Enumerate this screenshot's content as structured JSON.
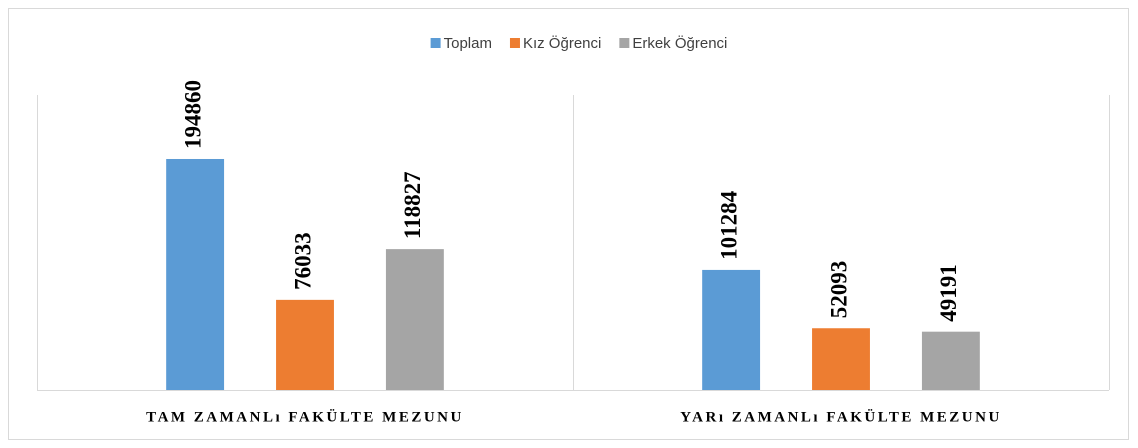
{
  "chart_data": {
    "type": "bar",
    "categories": [
      "TAM ZAMANLı FAKÜLTE MEZUNU",
      "YARı ZAMANLı FAKÜLTE MEZUNU"
    ],
    "series": [
      {
        "name": "Toplam",
        "color": "#5b9bd5",
        "values": [
          194860,
          101284
        ]
      },
      {
        "name": "Kız Öğrenci",
        "color": "#ed7d31",
        "values": [
          76033,
          52093
        ]
      },
      {
        "name": "Erkek Öğrenci",
        "color": "#a5a5a5",
        "values": [
          118827,
          49191
        ]
      }
    ],
    "legend": "top"
  }
}
